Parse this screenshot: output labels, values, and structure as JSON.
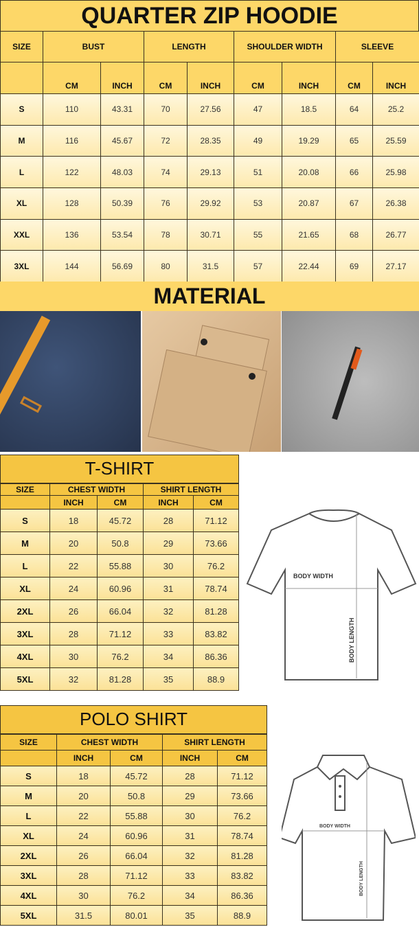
{
  "hoodie": {
    "title": "QUARTER ZIP HOODIE",
    "size_label": "SIZE",
    "groups": [
      "BUST",
      "LENGTH",
      "SHOULDER WIDTH",
      "SLEEVE"
    ],
    "units": [
      "CM",
      "INCH",
      "CM",
      "INCH",
      "CM",
      "INCH",
      "CM",
      "INCH"
    ],
    "rows": [
      [
        "S",
        "110",
        "43.31",
        "70",
        "27.56",
        "47",
        "18.5",
        "64",
        "25.2"
      ],
      [
        "M",
        "116",
        "45.67",
        "72",
        "28.35",
        "49",
        "19.29",
        "65",
        "25.59"
      ],
      [
        "L",
        "122",
        "48.03",
        "74",
        "29.13",
        "51",
        "20.08",
        "66",
        "25.98"
      ],
      [
        "XL",
        "128",
        "50.39",
        "76",
        "29.92",
        "53",
        "20.87",
        "67",
        "26.38"
      ],
      [
        "XXL",
        "136",
        "53.54",
        "78",
        "30.71",
        "55",
        "21.65",
        "68",
        "26.77"
      ],
      [
        "3XL",
        "144",
        "56.69",
        "80",
        "31.5",
        "57",
        "22.44",
        "69",
        "27.17"
      ]
    ]
  },
  "material": {
    "title": "MATERIAL",
    "photos": [
      "navy-fabric-pocket-zipper",
      "khaki-flap-pocket",
      "grey-sleeve-zipper"
    ]
  },
  "tshirt": {
    "title": "T-SHIRT",
    "size_label": "SIZE",
    "groups": [
      "CHEST WIDTH",
      "SHIRT LENGTH"
    ],
    "units": [
      "INCH",
      "CM",
      "INCH",
      "CM"
    ],
    "rows": [
      [
        "S",
        "18",
        "45.72",
        "28",
        "71.12"
      ],
      [
        "M",
        "20",
        "50.8",
        "29",
        "73.66"
      ],
      [
        "L",
        "22",
        "55.88",
        "30",
        "76.2"
      ],
      [
        "XL",
        "24",
        "60.96",
        "31",
        "78.74"
      ],
      [
        "2XL",
        "26",
        "66.04",
        "32",
        "81.28"
      ],
      [
        "3XL",
        "28",
        "71.12",
        "33",
        "83.82"
      ],
      [
        "4XL",
        "30",
        "76.2",
        "34",
        "86.36"
      ],
      [
        "5XL",
        "32",
        "81.28",
        "35",
        "88.9"
      ]
    ],
    "diagram": {
      "width_label": "BODY WIDTH",
      "length_label": "BODY LENGTH"
    }
  },
  "polo": {
    "title": "POLO SHIRT",
    "size_label": "SIZE",
    "groups": [
      "CHEST WIDTH",
      "SHIRT LENGTH"
    ],
    "units": [
      "INCH",
      "CM",
      "INCH",
      "CM"
    ],
    "rows": [
      [
        "S",
        "18",
        "45.72",
        "28",
        "71.12"
      ],
      [
        "M",
        "20",
        "50.8",
        "29",
        "73.66"
      ],
      [
        "L",
        "22",
        "55.88",
        "30",
        "76.2"
      ],
      [
        "XL",
        "24",
        "60.96",
        "31",
        "78.74"
      ],
      [
        "2XL",
        "26",
        "66.04",
        "32",
        "81.28"
      ],
      [
        "3XL",
        "28",
        "71.12",
        "33",
        "83.82"
      ],
      [
        "4XL",
        "30",
        "76.2",
        "34",
        "86.36"
      ],
      [
        "5XL",
        "31.5",
        "80.01",
        "35",
        "88.9"
      ]
    ],
    "diagram": {
      "width_label": "BODY WIDTH",
      "length_label": "BODY LENGTH"
    }
  },
  "colors": {
    "header_yellow": "#fdd768",
    "table_yellow": "#f5c542",
    "cell_light": "#fdf0c0",
    "border": "#3a3220"
  }
}
